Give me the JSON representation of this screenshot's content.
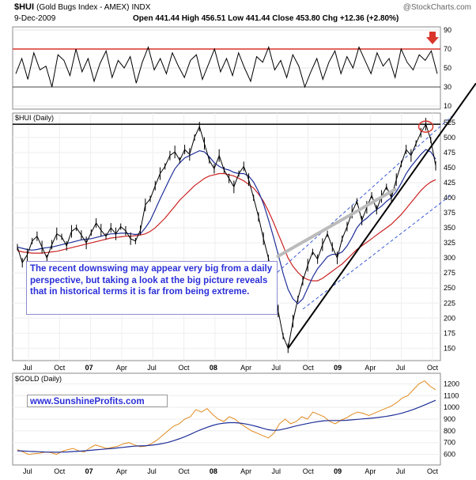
{
  "header": {
    "symbol": "$HUI",
    "name": "(Gold Bugs Index - AMEX)",
    "exchange": "INDX",
    "date": "9-Dec-2009",
    "open": "Open 441.44",
    "high": "High 456.51",
    "low": "Low 441.44",
    "close": "Close 453.80",
    "chg": "Chg +12.36 (+2.80%)",
    "arrow_direction": "down",
    "watermark": "@StockCharts.com"
  },
  "callout": {
    "text": "The recent downswing may appear very big from a daily perspective, but taking a look at the big picture reveals that in historical terms it is far from being extreme."
  },
  "url_label": "www.SunshineProfits.com",
  "colors": {
    "accent_red": "#d9342a",
    "callout_text": "#2b2fd8",
    "ma_blue": "#1f2f99",
    "ma_red": "#cc2222",
    "gold_line": "#e08a1e",
    "trend_dashed": "#3a5bd8",
    "panel_border": "#888888"
  },
  "chart_data": [
    {
      "type": "line",
      "panel": "RSI",
      "ylim": [
        10,
        90
      ],
      "ticks": [
        "90",
        "70",
        "50",
        "30",
        "10"
      ],
      "reference_lines": [
        70,
        30
      ],
      "values": [
        44,
        60,
        38,
        66,
        48,
        52,
        30,
        64,
        58,
        42,
        70,
        46,
        60,
        36,
        55,
        68,
        40,
        58,
        50,
        62,
        34,
        56,
        72,
        48,
        60,
        44,
        66,
        52,
        40,
        58,
        64,
        38,
        54,
        70,
        46,
        60,
        42,
        66,
        50,
        36,
        62,
        56,
        72,
        48,
        58,
        40,
        64,
        52,
        30,
        46,
        60,
        38,
        56,
        68,
        44,
        62,
        50,
        72,
        58,
        44,
        66,
        52,
        60,
        40,
        70,
        56,
        48,
        64,
        58,
        68,
        44
      ]
    },
    {
      "type": "line",
      "panel": "HUI",
      "label": "$HUI (Daily)",
      "ylim": [
        140,
        530
      ],
      "ticks": [
        "525",
        "500",
        "475",
        "450",
        "425",
        "400",
        "375",
        "350",
        "325",
        "300",
        "275",
        "250",
        "225",
        "200",
        "175",
        "150"
      ],
      "x_ticks": [
        "Jul",
        "Oct",
        "07",
        "Apr",
        "Jul",
        "Oct",
        "08",
        "Apr",
        "Jul",
        "Oct",
        "09",
        "Apr",
        "Jul",
        "Oct"
      ],
      "series": [
        {
          "values": [
            318,
            292,
            305,
            328,
            336,
            318,
            300,
            322,
            340,
            335,
            320,
            344,
            350,
            338,
            325,
            342,
            358,
            346,
            336,
            350,
            340,
            352,
            345,
            332,
            328,
            346,
            388,
            398,
            420,
            440,
            452,
            470,
            476,
            462,
            480,
            472,
            500,
            518,
            490,
            462,
            448,
            470,
            446,
            432,
            418,
            440,
            452,
            430,
            400,
            368,
            332,
            300,
            260,
            212,
            170,
            150,
            195,
            232,
            262,
            288,
            310,
            298,
            322,
            340,
            318,
            300,
            332,
            352,
            376,
            394,
            362,
            384,
            404,
            380,
            402,
            418,
            400,
            430,
            456,
            480,
            470,
            490,
            508,
            522,
            496,
            453
          ]
        },
        {
          "values": [
            318,
            316,
            314,
            313,
            314,
            316,
            317,
            318,
            320,
            322,
            324,
            326,
            328,
            330,
            331,
            332,
            334,
            336,
            338,
            340,
            340,
            341,
            341,
            340,
            339,
            340,
            350,
            362,
            380,
            398,
            415,
            432,
            448,
            458,
            466,
            470,
            474,
            478,
            476,
            468,
            458,
            452,
            448,
            446,
            442,
            440,
            440,
            436,
            426,
            410,
            390,
            364,
            336,
            306,
            274,
            248,
            232,
            224,
            232,
            250,
            268,
            282,
            292,
            302,
            306,
            306,
            310,
            320,
            334,
            350,
            360,
            366,
            374,
            380,
            386,
            394,
            400,
            410,
            424,
            440,
            452,
            462,
            472,
            480,
            476,
            464
          ]
        },
        {
          "values": [
            312,
            310,
            309,
            308,
            308,
            308,
            309,
            310,
            311,
            313,
            315,
            317,
            319,
            321,
            323,
            325,
            327,
            329,
            331,
            333,
            334,
            335,
            336,
            336,
            337,
            338,
            340,
            344,
            350,
            358,
            366,
            376,
            386,
            396,
            404,
            412,
            420,
            426,
            432,
            436,
            438,
            440,
            440,
            438,
            436,
            432,
            428,
            422,
            416,
            406,
            394,
            378,
            360,
            340,
            320,
            300,
            286,
            276,
            268,
            264,
            262,
            262,
            266,
            272,
            278,
            284,
            290,
            298,
            306,
            314,
            320,
            326,
            332,
            338,
            344,
            350,
            356,
            364,
            372,
            382,
            392,
            402,
            412,
            420,
            426,
            430
          ]
        }
      ],
      "annotations": [
        "red circle on recent high",
        "black trend line from Oct-08 low",
        "blue dashed rising channel",
        "horizontal black line at prior 2008 high"
      ]
    },
    {
      "type": "line",
      "panel": "GOLD",
      "label": "$GOLD (Daily)",
      "ylim": [
        550,
        1250
      ],
      "ticks": [
        "1200",
        "1100",
        "1000",
        "900",
        "800",
        "700",
        "600"
      ],
      "series": [
        {
          "values": [
            640,
            620,
            600,
            605,
            610,
            620,
            615,
            600,
            625,
            640,
            650,
            630,
            620,
            655,
            680,
            665,
            650,
            660,
            670,
            690,
            700,
            680,
            665,
            670,
            690,
            720,
            760,
            800,
            840,
            860,
            900,
            920,
            980,
            960,
            990,
            940,
            900,
            880,
            920,
            900,
            860,
            830,
            800,
            780,
            760,
            740,
            780,
            860,
            900,
            860,
            880,
            920,
            900,
            960,
            940,
            920,
            880,
            860,
            890,
            910,
            940,
            960,
            950,
            930,
            950,
            970,
            990,
            1010,
            1040,
            1080,
            1100,
            1150,
            1200,
            1226,
            1180,
            1150
          ]
        },
        {
          "values": [
            630,
            628,
            626,
            624,
            622,
            620,
            619,
            618,
            619,
            621,
            624,
            627,
            630,
            634,
            638,
            642,
            646,
            650,
            655,
            660,
            665,
            670,
            672,
            674,
            678,
            684,
            692,
            702,
            716,
            732,
            750,
            770,
            792,
            812,
            830,
            846,
            858,
            866,
            870,
            870,
            866,
            858,
            848,
            836,
            822,
            810,
            804,
            808,
            818,
            830,
            842,
            852,
            862,
            872,
            880,
            886,
            888,
            888,
            888,
            890,
            894,
            898,
            902,
            906,
            910,
            916,
            922,
            930,
            940,
            952,
            966,
            982,
            1000,
            1020,
            1040,
            1060
          ]
        }
      ],
      "x_ticks": [
        "Jul",
        "Oct",
        "07",
        "Apr",
        "Jul",
        "Oct",
        "08",
        "Apr",
        "Jul",
        "Oct",
        "09",
        "Apr",
        "Jul",
        "Oct"
      ]
    }
  ]
}
